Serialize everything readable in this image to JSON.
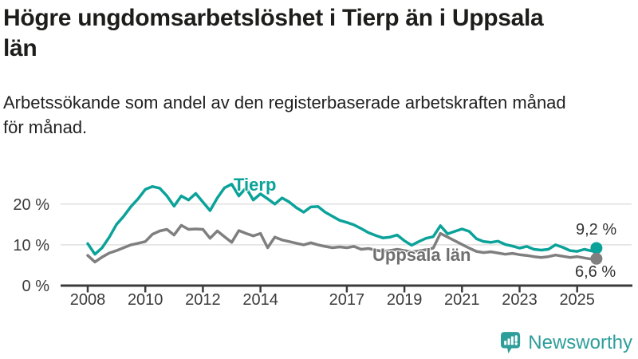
{
  "header": {
    "title": "Högre ungdomsarbetslöshet i Tierp än i Uppsala\nlän",
    "subtitle": "Arbetssökande som andel av den registerbaserade arbetskraften månad\nför månad."
  },
  "chart_data": {
    "type": "line",
    "title": "Högre ungdomsarbetslöshet i Tierp än i Uppsala län",
    "subtitle": "Arbetssökande som andel av den registerbaserade arbetskraften månad för månad.",
    "xlabel": "",
    "ylabel": "",
    "unit": "%",
    "grid": "horizontal",
    "legend": "inline-labels",
    "ylim": [
      0,
      27
    ],
    "yticks": [
      {
        "value": 0,
        "label": "0 %"
      },
      {
        "value": 10,
        "label": "10 %"
      },
      {
        "value": 20,
        "label": "20 %"
      }
    ],
    "xticks": [
      2008,
      2010,
      2012,
      2014,
      2017,
      2019,
      2021,
      2023,
      2025
    ],
    "x": [
      2008.0,
      2008.25,
      2008.5,
      2008.75,
      2009.0,
      2009.25,
      2009.5,
      2009.75,
      2010.0,
      2010.25,
      2010.5,
      2010.75,
      2011.0,
      2011.25,
      2011.5,
      2011.75,
      2012.0,
      2012.25,
      2012.5,
      2012.75,
      2013.0,
      2013.25,
      2013.5,
      2013.75,
      2014.0,
      2014.25,
      2014.5,
      2014.75,
      2015.0,
      2015.25,
      2015.5,
      2015.75,
      2016.0,
      2016.25,
      2016.5,
      2016.75,
      2017.0,
      2017.25,
      2017.5,
      2017.75,
      2018.0,
      2018.25,
      2018.5,
      2018.75,
      2019.0,
      2019.25,
      2019.5,
      2019.75,
      2020.0,
      2020.25,
      2020.5,
      2020.75,
      2021.0,
      2021.25,
      2021.5,
      2021.75,
      2022.0,
      2022.25,
      2022.5,
      2022.75,
      2023.0,
      2023.25,
      2023.5,
      2023.75,
      2024.0,
      2024.25,
      2024.5,
      2024.75,
      2025.0,
      2025.25,
      2025.5,
      2025.67
    ],
    "series": [
      {
        "name": "Tierp",
        "color": "#0ba29a",
        "end_value": 9.2,
        "end_label": "9,2 %",
        "values": [
          10.3,
          7.7,
          9.3,
          11.9,
          15.0,
          17.0,
          19.4,
          21.3,
          23.6,
          24.3,
          23.9,
          22.0,
          19.5,
          22.0,
          21.0,
          22.6,
          20.5,
          18.4,
          21.5,
          24.0,
          24.9,
          22.0,
          24.0,
          21.0,
          22.5,
          21.3,
          20.0,
          21.5,
          20.5,
          19.1,
          18.0,
          19.3,
          19.4,
          18.0,
          17.0,
          16.0,
          15.5,
          14.9,
          14.0,
          13.0,
          12.3,
          11.7,
          11.9,
          12.4,
          11.0,
          9.9,
          10.8,
          11.6,
          12.0,
          14.7,
          12.7,
          13.3,
          13.9,
          13.3,
          11.5,
          10.8,
          10.6,
          10.9,
          10.1,
          9.7,
          9.2,
          9.6,
          8.9,
          8.7,
          8.9,
          10.0,
          9.4,
          8.6,
          8.4,
          8.9,
          8.5,
          9.2
        ]
      },
      {
        "name": "Uppsala län",
        "color": "#7f7f7f",
        "end_value": 6.6,
        "end_label": "6,6 %",
        "values": [
          7.4,
          5.8,
          7.0,
          8.0,
          8.6,
          9.3,
          10.0,
          10.4,
          10.8,
          12.6,
          13.4,
          13.8,
          12.4,
          14.8,
          13.8,
          13.9,
          13.8,
          11.6,
          13.4,
          12.0,
          10.6,
          13.5,
          12.8,
          12.2,
          12.8,
          9.3,
          11.9,
          11.2,
          10.8,
          10.4,
          10.0,
          10.5,
          10.0,
          9.6,
          9.3,
          9.5,
          9.3,
          9.6,
          8.9,
          9.1,
          8.7,
          8.4,
          8.6,
          8.9,
          8.6,
          8.3,
          8.5,
          8.8,
          9.2,
          12.8,
          11.9,
          11.0,
          10.1,
          9.2,
          8.4,
          8.1,
          8.3,
          8.0,
          7.7,
          7.9,
          7.6,
          7.4,
          7.1,
          6.9,
          7.1,
          7.5,
          7.2,
          6.9,
          7.1,
          6.8,
          6.5,
          6.6
        ]
      }
    ],
    "colors": {
      "tierp": "#0ba29a",
      "uppsala": "#7f7f7f",
      "grid": "#e0e0e0",
      "axis": "#3b3b3b",
      "tick_text": "#3b3b3b"
    }
  },
  "footer": {
    "brand": "Newsworthy",
    "brand_color": "#2e9e9a"
  }
}
